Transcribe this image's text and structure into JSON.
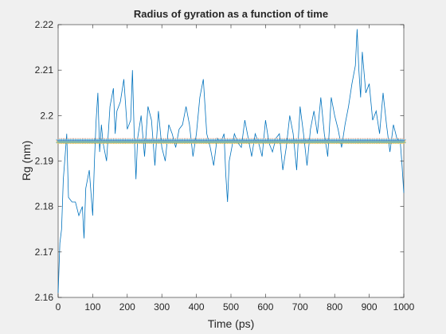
{
  "chart_data": {
    "type": "line",
    "title": "Radius of gyration as a function of time",
    "xlabel": "Time (ps)",
    "ylabel": "Rg (nm)",
    "xlim": [
      0,
      1000
    ],
    "ylim": [
      2.16,
      2.22
    ],
    "xticks": [
      0,
      100,
      200,
      300,
      400,
      500,
      600,
      700,
      800,
      900,
      1000
    ],
    "xtick_labels": [
      "0",
      "100",
      "200",
      "300",
      "400",
      "500",
      "600",
      "700",
      "800",
      "900",
      "1000"
    ],
    "yticks": [
      2.16,
      2.17,
      2.18,
      2.19,
      2.2,
      2.21,
      2.22
    ],
    "ytick_labels": [
      "2.16",
      "2.17",
      "2.18",
      "2.19",
      "2.2",
      "2.21",
      "2.22"
    ],
    "grid": false,
    "series": [
      {
        "color": "#0072BD",
        "style": "line",
        "x": [
          0,
          5,
          10,
          15,
          20,
          25,
          30,
          40,
          50,
          60,
          70,
          75,
          80,
          90,
          100,
          105,
          110,
          115,
          120,
          125,
          130,
          140,
          150,
          160,
          165,
          170,
          180,
          190,
          200,
          210,
          215,
          220,
          225,
          230,
          240,
          250,
          260,
          270,
          280,
          290,
          300,
          310,
          320,
          330,
          340,
          350,
          360,
          370,
          380,
          390,
          400,
          410,
          420,
          430,
          440,
          450,
          460,
          470,
          480,
          485,
          490,
          495,
          500,
          510,
          520,
          530,
          540,
          550,
          560,
          570,
          580,
          590,
          600,
          610,
          620,
          630,
          640,
          650,
          660,
          670,
          680,
          690,
          700,
          710,
          720,
          730,
          740,
          750,
          760,
          770,
          780,
          790,
          800,
          810,
          820,
          830,
          840,
          850,
          860,
          865,
          870,
          875,
          880,
          890,
          900,
          910,
          920,
          930,
          940,
          950,
          960,
          970,
          980,
          990,
          995,
          1000
        ],
        "y": [
          2.161,
          2.172,
          2.175,
          2.186,
          2.191,
          2.196,
          2.182,
          2.181,
          2.181,
          2.178,
          2.18,
          2.173,
          2.184,
          2.188,
          2.178,
          2.19,
          2.199,
          2.205,
          2.192,
          2.198,
          2.194,
          2.19,
          2.202,
          2.206,
          2.196,
          2.201,
          2.203,
          2.208,
          2.197,
          2.199,
          2.21,
          2.196,
          2.186,
          2.195,
          2.2,
          2.191,
          2.202,
          2.199,
          2.189,
          2.201,
          2.193,
          2.19,
          2.198,
          2.196,
          2.193,
          2.197,
          2.198,
          2.202,
          2.198,
          2.191,
          2.196,
          2.204,
          2.208,
          2.196,
          2.193,
          2.189,
          2.195,
          2.194,
          2.196,
          2.187,
          2.181,
          2.19,
          2.192,
          2.196,
          2.194,
          2.193,
          2.199,
          2.195,
          2.191,
          2.196,
          2.194,
          2.191,
          2.199,
          2.194,
          2.192,
          2.195,
          2.196,
          2.188,
          2.193,
          2.2,
          2.196,
          2.188,
          2.202,
          2.196,
          2.189,
          2.197,
          2.201,
          2.196,
          2.204,
          2.196,
          2.191,
          2.204,
          2.2,
          2.197,
          2.193,
          2.198,
          2.202,
          2.207,
          2.211,
          2.219,
          2.21,
          2.204,
          2.214,
          2.205,
          2.207,
          2.199,
          2.201,
          2.196,
          2.205,
          2.198,
          2.192,
          2.198,
          2.195,
          2.194,
          2.189,
          2.183
        ]
      },
      {
        "color": "#D95319",
        "style": "markers",
        "marker": "plus",
        "constant_y": 2.1946,
        "x_step": 5
      },
      {
        "color": "#EDB120",
        "style": "markers",
        "marker": "asterisk",
        "constant_y": 2.1942,
        "x_step": 5
      },
      {
        "color": "#7E2F8E",
        "style": "markers",
        "marker": "dot",
        "constant_y": 2.1945,
        "x_step": 5
      },
      {
        "color": "#4DBEEE",
        "style": "markers",
        "marker": "x",
        "constant_y": 2.1944,
        "x_step": 5
      }
    ]
  }
}
